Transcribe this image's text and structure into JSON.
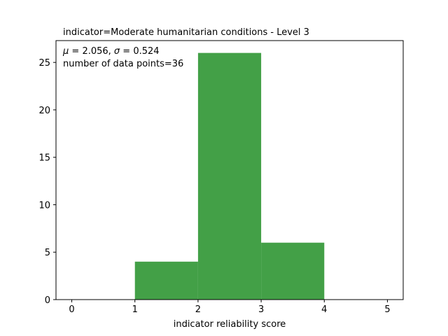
{
  "chart_data": {
    "type": "bar",
    "title": "indicator=Moderate humanitarian conditions - Level 3",
    "xlabel": "indicator reliability score",
    "ylabel": "",
    "bins": [
      {
        "x0": 1,
        "x1": 2,
        "count": 4
      },
      {
        "x0": 2,
        "x1": 3,
        "count": 26
      },
      {
        "x0": 3,
        "x1": 4,
        "count": 6
      }
    ],
    "xlim": [
      -0.25,
      5.25
    ],
    "ylim": [
      0,
      27.3
    ],
    "xticks": [
      0,
      1,
      2,
      3,
      4,
      5
    ],
    "yticks": [
      0,
      5,
      10,
      15,
      20,
      25
    ],
    "bar_color": "#43a047",
    "grid": false,
    "annotations": {
      "stats_prefix_mu": "μ",
      "stats_mu_value": " = 2.056,  ",
      "stats_prefix_sigma": "σ",
      "stats_sigma_value": " = 0.524",
      "count_line": "number of data points=36"
    }
  }
}
